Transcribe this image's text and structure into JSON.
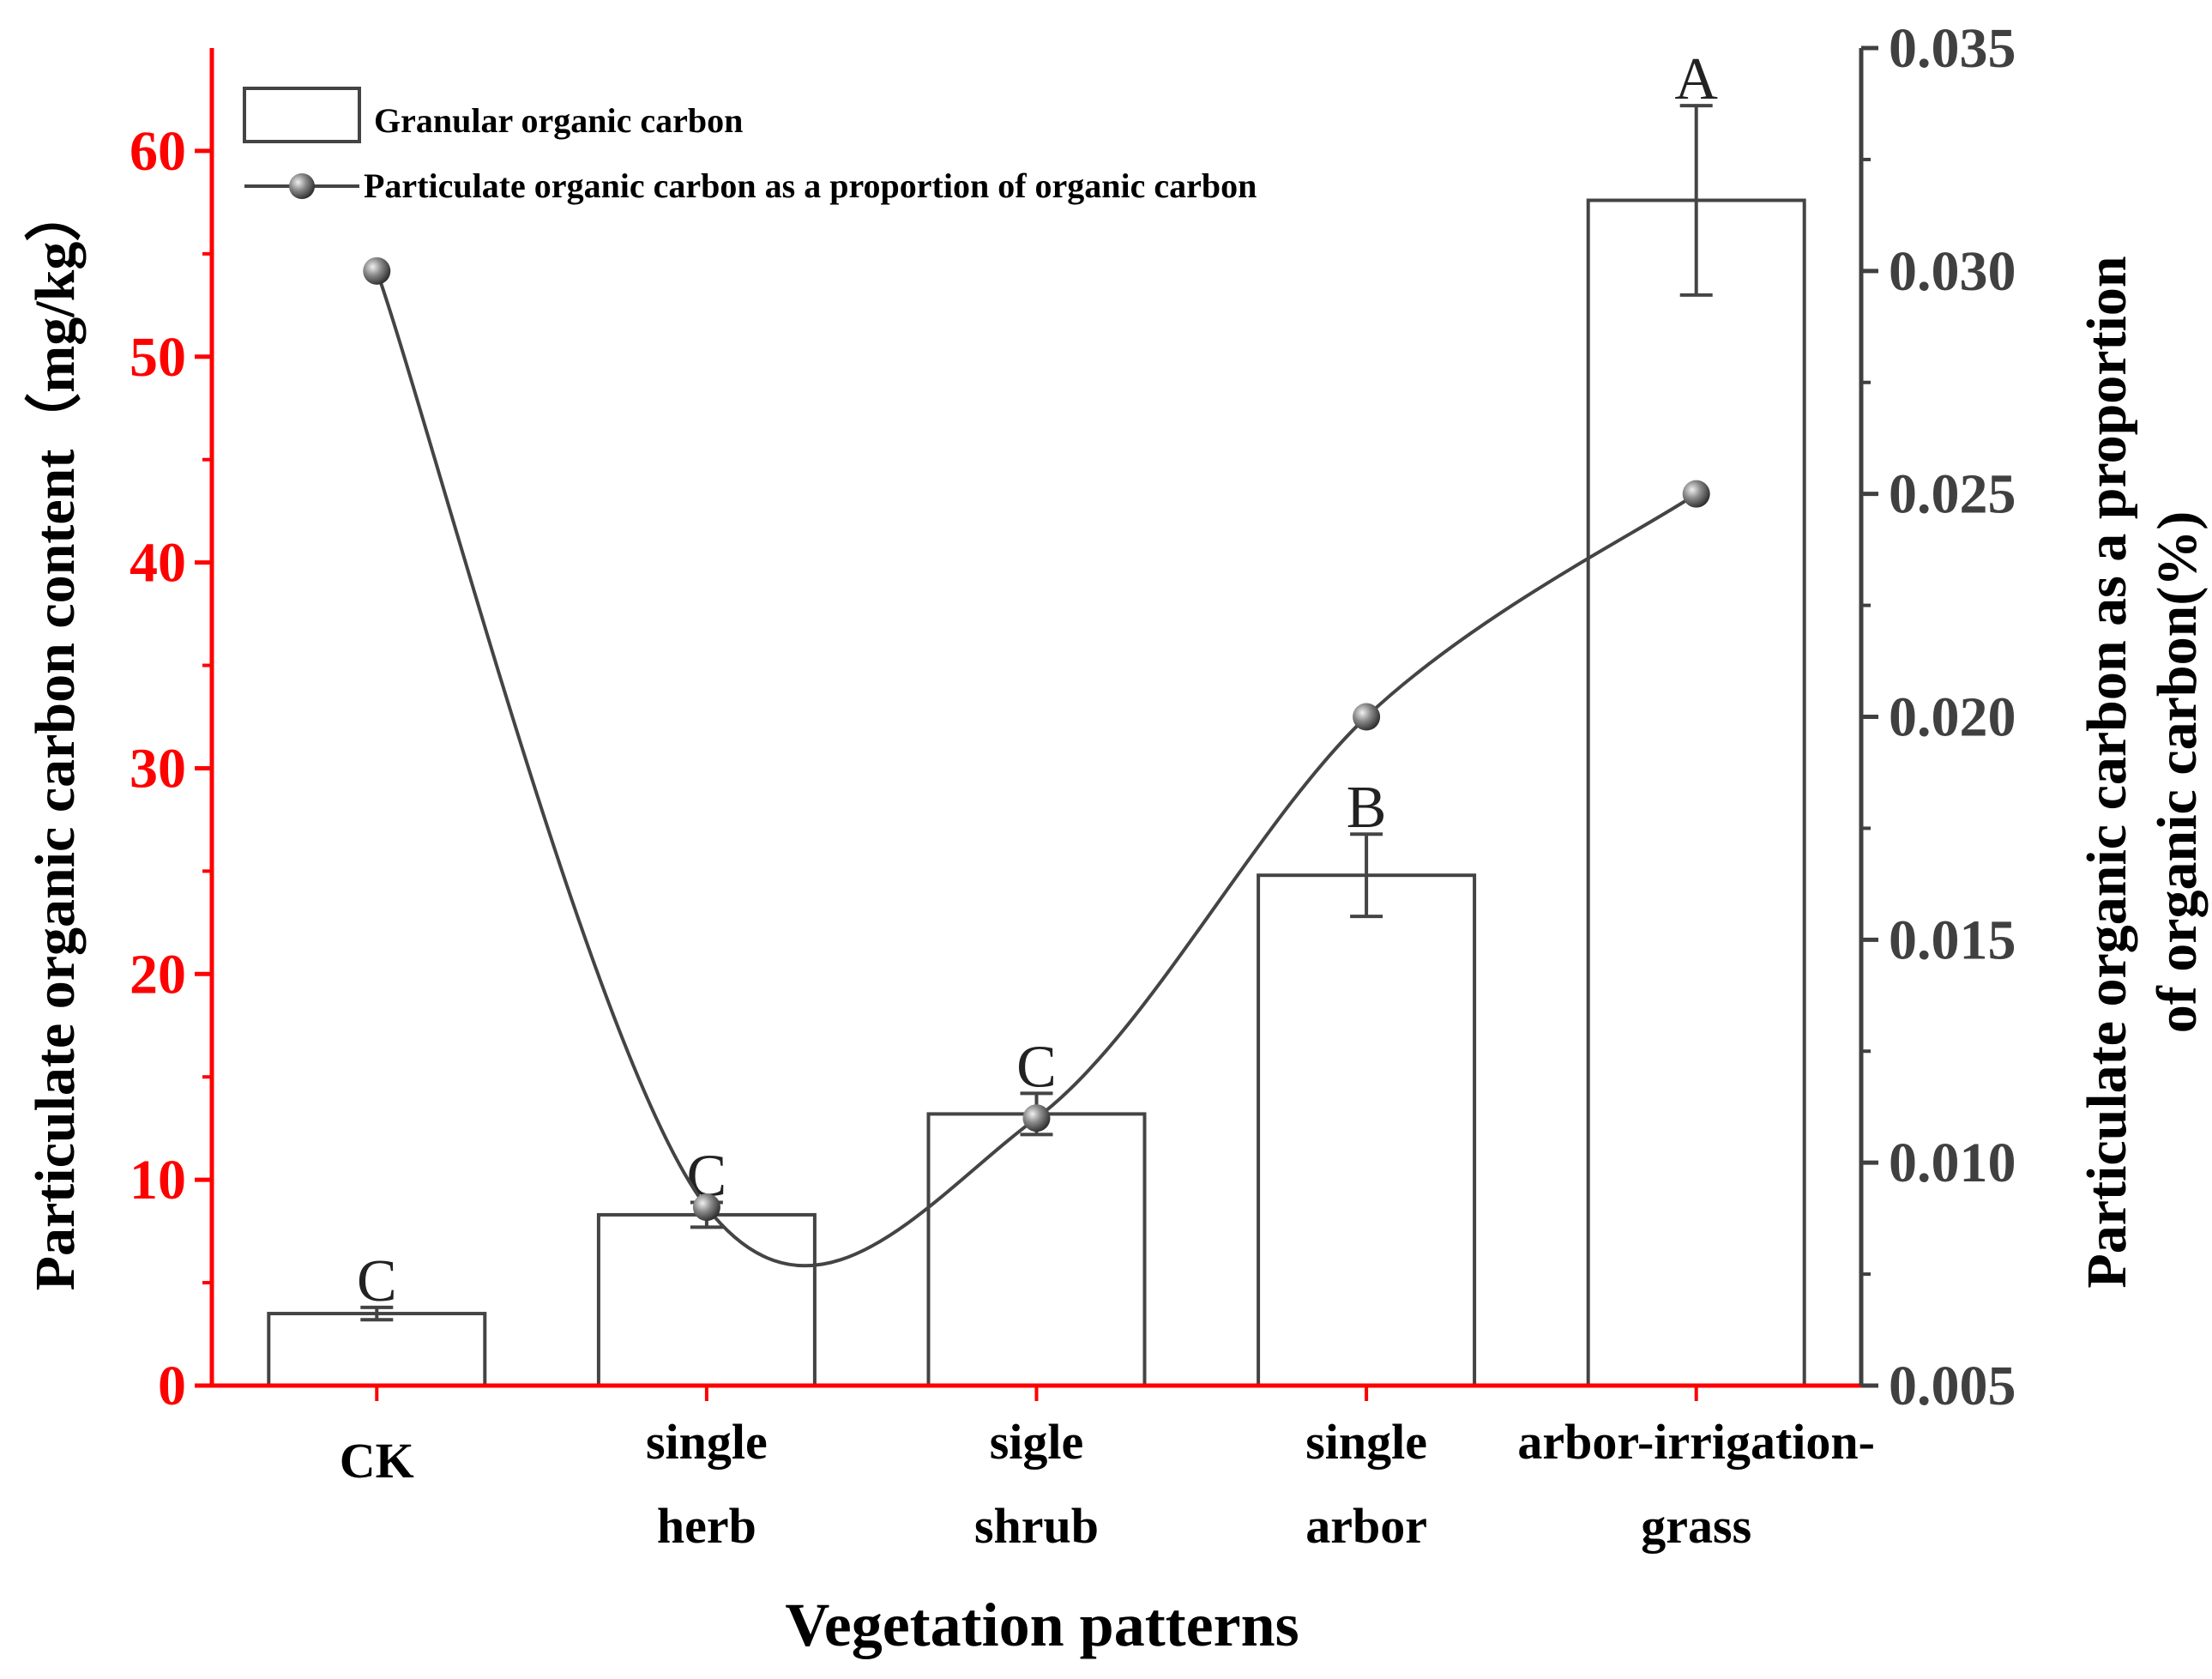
{
  "chart_data": {
    "type": "bar+line",
    "xlabel": "Vegetation patterns",
    "ylabel_left": "Particulate organic carbon content（mg/kg）",
    "ylabel_right_line1": "Particulate organic carbon as a proportion",
    "ylabel_right_line2": "of organic carbon(%)",
    "categories": [
      [
        "CK"
      ],
      [
        "single",
        "herb"
      ],
      [
        "sigle",
        "shrub"
      ],
      [
        "single",
        "arbor"
      ],
      [
        "arbor-irrigation-",
        "grass"
      ]
    ],
    "left_axis": {
      "ylim": [
        0,
        65
      ],
      "ticks": [
        "0",
        "10",
        "20",
        "30",
        "40",
        "50",
        "60"
      ]
    },
    "right_axis": {
      "ylim": [
        0.005,
        0.035
      ],
      "ticks": [
        "0.005",
        "0.010",
        "0.015",
        "0.020",
        "0.025",
        "0.030",
        "0.035"
      ]
    },
    "bar_series": {
      "name": "Granular organic carbon",
      "values": [
        3.5,
        8.3,
        13.2,
        24.8,
        57.6
      ],
      "errors": [
        0.3,
        0.6,
        1.0,
        2.0,
        4.6
      ],
      "letters": [
        "C",
        "C",
        "C",
        "B",
        "A"
      ]
    },
    "line_series": {
      "name": "Particulate organic carbon as a proportion of organic carbon",
      "values": [
        0.03,
        0.009,
        0.011,
        0.02,
        0.025
      ]
    },
    "legend": {
      "bar_label": "Granular organic carbon",
      "line_label": "Particulate organic carbon as a proportion of organic carbon",
      "position": "top-left"
    },
    "colors": {
      "left_axis": "#ff0000",
      "right_axis": "#404040",
      "bar_stroke": "#444444",
      "line": "#444444"
    }
  }
}
